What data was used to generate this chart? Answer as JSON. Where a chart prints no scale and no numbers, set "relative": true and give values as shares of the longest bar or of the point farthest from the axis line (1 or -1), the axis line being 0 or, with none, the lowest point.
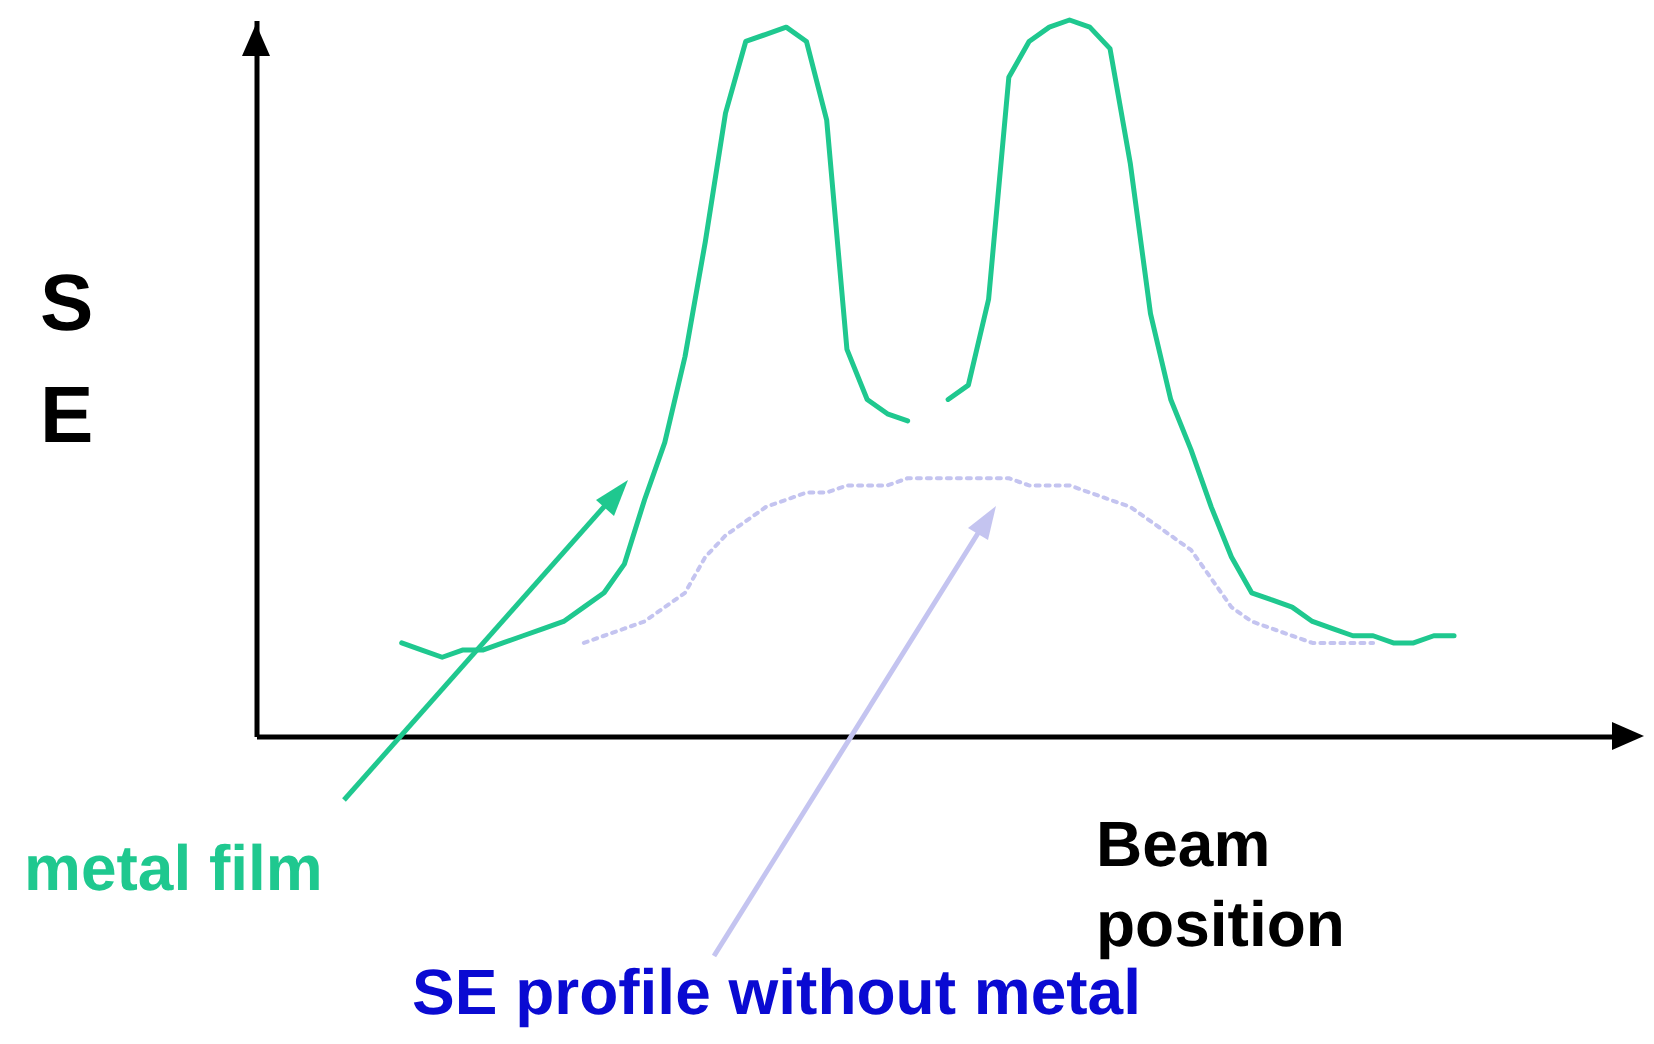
{
  "chart_data": {
    "type": "line",
    "relative": true,
    "ylabel": "SE",
    "xlabel": "Beam position",
    "marker": "none",
    "categories": [
      null,
      null,
      null,
      null,
      null,
      null,
      null,
      null,
      null,
      null,
      null,
      null,
      null,
      null,
      null,
      null,
      null,
      null,
      null,
      null,
      null,
      null,
      null,
      null,
      null,
      null,
      null,
      null,
      null,
      null,
      null,
      null,
      null,
      null,
      null,
      null,
      null,
      null,
      null,
      null,
      null,
      null,
      null,
      null,
      null,
      null,
      null,
      null,
      null,
      null,
      null,
      null,
      null
    ],
    "series": [
      {
        "color": "#1fc88f",
        "line_style": "solid",
        "values": [
          0.13,
          0.12,
          0.11,
          0.12,
          0.12,
          0.13,
          0.14,
          0.15,
          0.16,
          0.18,
          0.2,
          0.24,
          0.33,
          0.41,
          0.53,
          0.69,
          0.87,
          0.97,
          0.98,
          0.99,
          0.97,
          0.86,
          0.54,
          0.47,
          0.45,
          0.44,
          null,
          0.47,
          0.49,
          0.61,
          0.92,
          0.97,
          0.99,
          1,
          0.99,
          0.96,
          0.8,
          0.59,
          0.47,
          0.4,
          0.32,
          0.25,
          0.2,
          0.19,
          0.18,
          0.16,
          0.15,
          0.14,
          0.14,
          0.13,
          0.13,
          0.14,
          0.14
        ]
      },
      {
        "color": "#c4c4f0",
        "line_style": "dotted",
        "values": [
          null,
          null,
          null,
          null,
          null,
          null,
          null,
          null,
          null,
          0.13,
          0.14,
          0.15,
          0.16,
          0.18,
          0.2,
          0.25,
          0.28,
          0.3,
          0.32,
          0.33,
          0.34,
          0.34,
          0.35,
          0.35,
          0.35,
          0.36,
          0.36,
          0.36,
          0.36,
          0.36,
          0.36,
          0.35,
          0.35,
          0.35,
          0.34,
          0.33,
          0.32,
          0.3,
          0.28,
          0.26,
          0.22,
          0.18,
          0.16,
          0.15,
          0.14,
          0.13,
          0.13,
          0.13,
          0.13,
          null,
          null,
          null,
          null
        ]
      }
    ],
    "annotations": [
      "metal film",
      "SE profile without metal"
    ]
  }
}
